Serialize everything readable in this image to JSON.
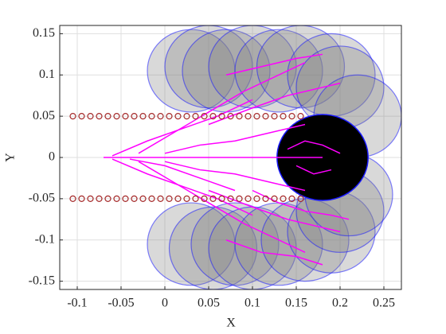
{
  "chart_data": {
    "type": "scatter",
    "xlabel": "X",
    "ylabel": "Y",
    "xlim": [
      -0.12,
      0.27
    ],
    "ylim": [
      -0.16,
      0.16
    ],
    "xticks": [
      -0.1,
      -0.05,
      0,
      0.05,
      0.1,
      0.15,
      0.2,
      0.25
    ],
    "yticks": [
      -0.15,
      -0.1,
      -0.05,
      0,
      0.05,
      0.1,
      0.15
    ],
    "grid": true,
    "circles": {
      "edge": "#1a1aff",
      "x": [
        0.03,
        0.05,
        0.07,
        0.1,
        0.13,
        0.155,
        0.19,
        0.2,
        0.22,
        0.03,
        0.055,
        0.08,
        0.1,
        0.13,
        0.16,
        0.19,
        0.2,
        0.21,
        0.18
      ],
      "y": [
        0.105,
        0.11,
        0.105,
        0.11,
        0.105,
        0.11,
        0.1,
        0.085,
        0.05,
        -0.105,
        -0.11,
        -0.105,
        -0.11,
        -0.105,
        -0.1,
        -0.09,
        -0.065,
        -0.045,
        0
      ],
      "r": [
        0.05,
        0.05,
        0.05,
        0.05,
        0.05,
        0.05,
        0.05,
        0.05,
        0.05,
        0.05,
        0.05,
        0.05,
        0.05,
        0.05,
        0.05,
        0.05,
        0.05,
        0.05,
        0.052
      ],
      "face": [
        "#808080",
        "#808080",
        "#808080",
        "#808080",
        "#808080",
        "#808080",
        "#808080",
        "#808080",
        "#808080",
        "#808080",
        "#808080",
        "#808080",
        "#808080",
        "#808080",
        "#808080",
        "#808080",
        "#808080",
        "#808080",
        "#000000"
      ]
    },
    "paths_color": "#ff00ff",
    "paths": [
      {
        "x": [
          -0.07,
          0.0,
          0.05,
          0.1,
          0.15,
          0.18
        ],
        "y": [
          0,
          0,
          0,
          0,
          0,
          0
        ]
      },
      {
        "x": [
          -0.06,
          -0.02,
          0.02,
          0.06,
          0.1
        ],
        "y": [
          0.002,
          0.02,
          0.035,
          0.05,
          0.07
        ]
      },
      {
        "x": [
          -0.03,
          0.01,
          0.05,
          0.09,
          0.13,
          0.16
        ],
        "y": [
          0.005,
          0.03,
          0.055,
          0.08,
          0.1,
          0.115
        ]
      },
      {
        "x": [
          -0.06,
          -0.02,
          0.02,
          0.06,
          0.1
        ],
        "y": [
          -0.002,
          -0.02,
          -0.035,
          -0.05,
          -0.07
        ]
      },
      {
        "x": [
          -0.03,
          0.01,
          0.05,
          0.09,
          0.13,
          0.16
        ],
        "y": [
          -0.005,
          -0.03,
          -0.055,
          -0.08,
          -0.1,
          -0.115
        ]
      },
      {
        "x": [
          0.0,
          0.04,
          0.08,
          0.12,
          0.16
        ],
        "y": [
          0.005,
          0.015,
          0.02,
          0.03,
          0.04
        ]
      },
      {
        "x": [
          0.0,
          0.04,
          0.08,
          0.12,
          0.16
        ],
        "y": [
          -0.005,
          -0.015,
          -0.02,
          -0.03,
          -0.04
        ]
      },
      {
        "x": [
          0.05,
          0.1,
          0.14,
          0.18,
          0.2
        ],
        "y": [
          0.04,
          0.06,
          0.075,
          0.085,
          0.09
        ]
      },
      {
        "x": [
          0.05,
          0.1,
          0.14,
          0.18,
          0.2
        ],
        "y": [
          -0.04,
          -0.06,
          -0.075,
          -0.085,
          -0.09
        ]
      },
      {
        "x": [
          0.14,
          0.16,
          0.18,
          0.2
        ],
        "y": [
          0.01,
          0.02,
          0.015,
          0.005
        ]
      },
      {
        "x": [
          0.15,
          0.17,
          0.19
        ],
        "y": [
          -0.01,
          -0.02,
          -0.015
        ]
      },
      {
        "x": [
          -0.04,
          0.0,
          0.04,
          0.08
        ],
        "y": [
          -0.002,
          -0.01,
          -0.025,
          -0.04
        ]
      },
      {
        "x": [
          0.1,
          0.13,
          0.16,
          0.19,
          0.21
        ],
        "y": [
          -0.04,
          -0.055,
          -0.065,
          -0.07,
          -0.075
        ]
      },
      {
        "x": [
          0.07,
          0.11,
          0.15,
          0.18
        ],
        "y": [
          0.1,
          0.11,
          0.12,
          0.125
        ]
      },
      {
        "x": [
          0.07,
          0.11,
          0.15,
          0.18
        ],
        "y": [
          -0.1,
          -0.115,
          -0.12,
          -0.13
        ]
      }
    ],
    "markers_color": "#a52a2a",
    "markers": [
      {
        "x": [
          -0.105,
          -0.095,
          -0.085,
          -0.075,
          -0.065,
          -0.055,
          -0.045,
          -0.035,
          -0.025,
          -0.015,
          -0.005,
          0.005,
          0.015,
          0.025,
          0.035,
          0.045,
          0.055,
          0.065,
          0.075,
          0.085,
          0.095,
          0.105,
          0.115,
          0.125,
          0.135,
          0.145,
          0.155
        ],
        "y": [
          0.05,
          0.05,
          0.05,
          0.05,
          0.05,
          0.05,
          0.05,
          0.05,
          0.05,
          0.05,
          0.05,
          0.05,
          0.05,
          0.05,
          0.05,
          0.05,
          0.05,
          0.05,
          0.05,
          0.05,
          0.05,
          0.05,
          0.05,
          0.05,
          0.05,
          0.05,
          0.05
        ]
      },
      {
        "x": [
          -0.105,
          -0.095,
          -0.085,
          -0.075,
          -0.065,
          -0.055,
          -0.045,
          -0.035,
          -0.025,
          -0.015,
          -0.005,
          0.005,
          0.015,
          0.025,
          0.035,
          0.045,
          0.055,
          0.065,
          0.075,
          0.085,
          0.095,
          0.105,
          0.115,
          0.125,
          0.135,
          0.145,
          0.155
        ],
        "y": [
          -0.05,
          -0.05,
          -0.05,
          -0.05,
          -0.05,
          -0.05,
          -0.05,
          -0.05,
          -0.05,
          -0.05,
          -0.05,
          -0.05,
          -0.05,
          -0.05,
          -0.05,
          -0.05,
          -0.05,
          -0.05,
          -0.05,
          -0.05,
          -0.05,
          -0.05,
          -0.05,
          -0.05,
          -0.05,
          -0.05,
          -0.05
        ]
      }
    ]
  }
}
